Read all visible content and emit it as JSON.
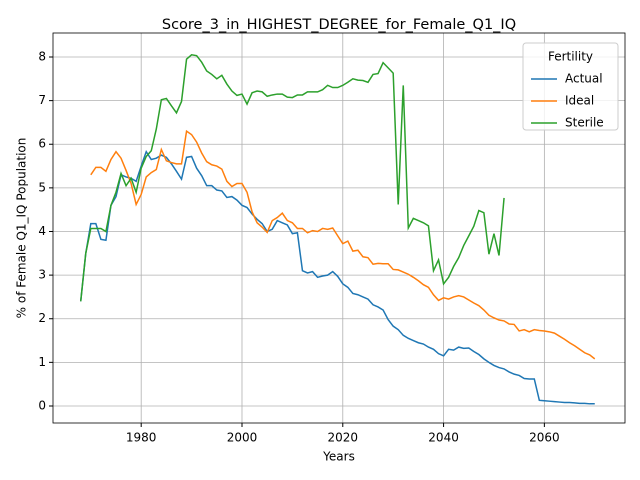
{
  "chart_data": {
    "type": "line",
    "title": "Score_3_in_HIGHEST_DEGREE_for_Female_Q1_IQ",
    "xlabel": "Years",
    "ylabel": "% of Female Q1_IQ Population",
    "legend_title": "Fertility",
    "legend_loc": "upper right",
    "grid": true,
    "xlim": [
      1962.5,
      2076
    ],
    "ylim": [
      -0.39,
      8.55
    ],
    "xticks": [
      1980,
      2000,
      2020,
      2040,
      2060
    ],
    "yticks": [
      0,
      1,
      2,
      3,
      4,
      5,
      6,
      7,
      8
    ],
    "x": [
      1968,
      1969,
      1970,
      1971,
      1972,
      1973,
      1974,
      1975,
      1976,
      1977,
      1978,
      1979,
      1980,
      1981,
      1982,
      1983,
      1984,
      1985,
      1986,
      1987,
      1988,
      1989,
      1990,
      1991,
      1992,
      1993,
      1994,
      1995,
      1996,
      1997,
      1998,
      1999,
      2000,
      2001,
      2002,
      2003,
      2004,
      2005,
      2006,
      2007,
      2008,
      2009,
      2010,
      2011,
      2012,
      2013,
      2014,
      2015,
      2016,
      2017,
      2018,
      2019,
      2020,
      2021,
      2022,
      2023,
      2024,
      2025,
      2026,
      2027,
      2028,
      2029,
      2030,
      2031,
      2032,
      2033,
      2034,
      2035,
      2036,
      2037,
      2038,
      2039,
      2040,
      2041,
      2042,
      2043,
      2044,
      2045,
      2046,
      2047,
      2048,
      2049,
      2050,
      2051,
      2052,
      2053,
      2054,
      2055,
      2056,
      2057,
      2058,
      2059,
      2060,
      2061,
      2062,
      2063,
      2064,
      2065,
      2066,
      2067,
      2068,
      2069,
      2070
    ],
    "series": [
      {
        "name": "Actual",
        "color": "#1f77b4",
        "values": [
          2.4,
          3.5,
          4.18,
          4.18,
          3.82,
          3.8,
          4.6,
          4.8,
          5.3,
          5.25,
          5.22,
          5.15,
          5.5,
          5.83,
          5.65,
          5.68,
          5.75,
          5.7,
          5.55,
          5.38,
          5.2,
          5.7,
          5.72,
          5.45,
          5.28,
          5.05,
          5.05,
          4.95,
          4.93,
          4.78,
          4.8,
          4.72,
          4.6,
          4.55,
          4.4,
          4.28,
          4.18,
          4.0,
          4.05,
          4.25,
          4.2,
          4.15,
          3.95,
          3.97,
          3.1,
          3.05,
          3.08,
          2.95,
          2.98,
          3.0,
          3.08,
          2.97,
          2.8,
          2.72,
          2.58,
          2.55,
          2.5,
          2.45,
          2.32,
          2.27,
          2.2,
          1.98,
          1.83,
          1.75,
          1.62,
          1.55,
          1.5,
          1.45,
          1.42,
          1.35,
          1.3,
          1.2,
          1.15,
          1.3,
          1.28,
          1.35,
          1.32,
          1.33,
          1.25,
          1.18,
          1.08,
          1.0,
          0.93,
          0.88,
          0.85,
          0.78,
          0.73,
          0.7,
          0.63,
          0.62,
          0.62,
          0.13,
          0.12,
          0.11,
          0.1,
          0.09,
          0.08,
          0.08,
          0.07,
          0.06,
          0.06,
          0.05,
          0.05
        ]
      },
      {
        "name": "Ideal",
        "color": "#ff7f0e",
        "values": [
          null,
          null,
          5.3,
          5.47,
          5.47,
          5.38,
          5.65,
          5.83,
          5.68,
          5.4,
          5.1,
          4.62,
          4.85,
          5.25,
          5.35,
          5.42,
          5.88,
          5.62,
          5.58,
          5.55,
          5.55,
          6.3,
          6.22,
          6.05,
          5.8,
          5.6,
          5.53,
          5.5,
          5.43,
          5.15,
          5.03,
          5.1,
          5.1,
          4.9,
          4.45,
          4.2,
          4.1,
          3.98,
          4.25,
          4.32,
          4.42,
          4.25,
          4.2,
          4.07,
          4.07,
          3.97,
          4.02,
          4.0,
          4.07,
          4.05,
          4.08,
          3.9,
          3.72,
          3.78,
          3.55,
          3.57,
          3.42,
          3.4,
          3.25,
          3.27,
          3.26,
          3.26,
          3.13,
          3.12,
          3.07,
          3.02,
          2.95,
          2.87,
          2.78,
          2.72,
          2.55,
          2.42,
          2.48,
          2.45,
          2.5,
          2.53,
          2.5,
          2.43,
          2.36,
          2.3,
          2.2,
          2.08,
          2.02,
          1.97,
          1.95,
          1.88,
          1.87,
          1.72,
          1.75,
          1.7,
          1.75,
          1.73,
          1.72,
          1.7,
          1.67,
          1.6,
          1.53,
          1.45,
          1.38,
          1.3,
          1.22,
          1.17,
          1.08
        ]
      },
      {
        "name": "Sterile",
        "color": "#2ca02c",
        "values": [
          2.4,
          3.5,
          4.07,
          4.07,
          4.07,
          4.0,
          4.6,
          4.9,
          5.33,
          5.05,
          5.22,
          4.9,
          5.45,
          5.72,
          5.85,
          6.35,
          7.02,
          7.05,
          6.88,
          6.72,
          6.98,
          7.95,
          8.05,
          8.03,
          7.88,
          7.68,
          7.6,
          7.5,
          7.58,
          7.38,
          7.22,
          7.12,
          7.15,
          6.92,
          7.18,
          7.22,
          7.2,
          7.1,
          7.13,
          7.15,
          7.15,
          7.08,
          7.07,
          7.13,
          7.13,
          7.2,
          7.2,
          7.2,
          7.25,
          7.35,
          7.3,
          7.3,
          7.35,
          7.42,
          7.5,
          7.47,
          7.46,
          7.42,
          7.6,
          7.62,
          7.87,
          7.75,
          7.63,
          4.62,
          7.35,
          4.08,
          4.3,
          4.25,
          4.2,
          4.13,
          3.1,
          3.35,
          2.8,
          2.95,
          3.2,
          3.4,
          3.68,
          3.9,
          4.12,
          4.48,
          4.43,
          3.48,
          3.95,
          3.45,
          4.77,
          null,
          null,
          null,
          null,
          null,
          null,
          null,
          null,
          null,
          null,
          null,
          null,
          null,
          null,
          null,
          null,
          null,
          null
        ]
      }
    ]
  }
}
